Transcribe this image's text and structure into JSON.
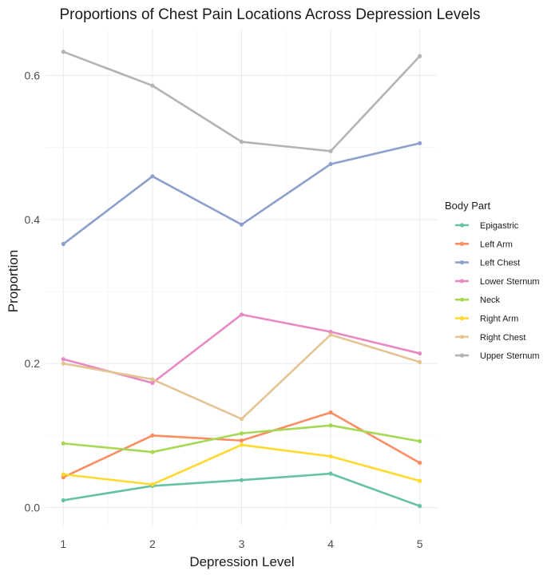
{
  "chart_data": {
    "type": "line",
    "title": "Proportions of Chest Pain Locations Across Depression Levels",
    "xlabel": "Depression Level",
    "ylabel": "Proportion",
    "x": [
      1,
      2,
      3,
      4,
      5
    ],
    "x_ticks": [
      "1",
      "2",
      "3",
      "4",
      "5"
    ],
    "y_ticks": [
      "0.0",
      "0.2",
      "0.4",
      "0.6"
    ],
    "xlim": [
      0.8,
      5.2
    ],
    "ylim": [
      -0.025,
      0.665
    ],
    "grid": true,
    "legend_title": "Body Part",
    "legend_position": "right",
    "series": [
      {
        "name": "Epigastric",
        "color": "#66c2a5",
        "values": [
          0.01,
          0.03,
          0.038,
          0.047,
          0.002
        ]
      },
      {
        "name": "Left Arm",
        "color": "#fc8d62",
        "values": [
          0.042,
          0.1,
          0.093,
          0.132,
          0.062
        ]
      },
      {
        "name": "Left Chest",
        "color": "#8da0cb",
        "values": [
          0.366,
          0.46,
          0.393,
          0.477,
          0.506
        ]
      },
      {
        "name": "Lower Sternum",
        "color": "#e78ac3",
        "values": [
          0.206,
          0.173,
          0.268,
          0.244,
          0.214
        ]
      },
      {
        "name": "Neck",
        "color": "#a6d854",
        "values": [
          0.089,
          0.077,
          0.103,
          0.114,
          0.092
        ]
      },
      {
        "name": "Right Arm",
        "color": "#ffd92f",
        "values": [
          0.046,
          0.032,
          0.087,
          0.071,
          0.037
        ]
      },
      {
        "name": "Right Chest",
        "color": "#e5c494",
        "values": [
          0.2,
          0.178,
          0.123,
          0.24,
          0.202
        ]
      },
      {
        "name": "Upper Sternum",
        "color": "#b3b3b3",
        "values": [
          0.633,
          0.586,
          0.508,
          0.495,
          0.627
        ]
      }
    ]
  }
}
